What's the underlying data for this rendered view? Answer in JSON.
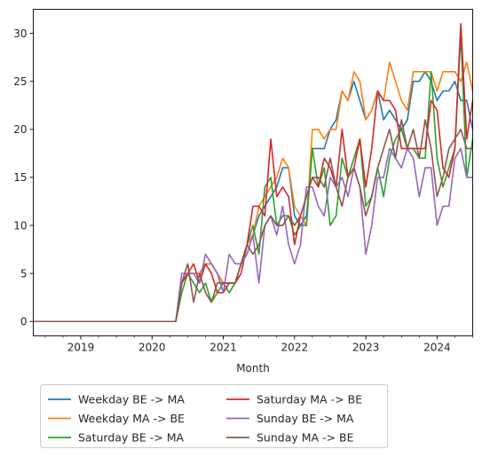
{
  "chart_data": {
    "type": "line",
    "title": "",
    "xlabel": "Month",
    "ylabel": "",
    "x_tick_labels": [
      "2019",
      "2020",
      "2021",
      "2022",
      "2023",
      "2024"
    ],
    "y_ticks": [
      0,
      5,
      10,
      15,
      20,
      25,
      30
    ],
    "xlim": [
      "2018-05",
      "2024-07"
    ],
    "ylim": [
      -1.5,
      32.5
    ],
    "grid": false,
    "legend_position": "below",
    "legend_columns": 2,
    "x": [
      "2018-05",
      "2018-06",
      "2018-07",
      "2018-08",
      "2018-09",
      "2018-10",
      "2018-11",
      "2018-12",
      "2019-01",
      "2019-02",
      "2019-03",
      "2019-04",
      "2019-05",
      "2019-06",
      "2019-07",
      "2019-08",
      "2019-09",
      "2019-10",
      "2019-11",
      "2019-12",
      "2020-01",
      "2020-02",
      "2020-03",
      "2020-04",
      "2020-05",
      "2020-06",
      "2020-07",
      "2020-08",
      "2020-09",
      "2020-10",
      "2020-11",
      "2020-12",
      "2021-01",
      "2021-02",
      "2021-03",
      "2021-04",
      "2021-05",
      "2021-06",
      "2021-07",
      "2021-08",
      "2021-09",
      "2021-10",
      "2021-11",
      "2021-12",
      "2022-01",
      "2022-02",
      "2022-03",
      "2022-04",
      "2022-05",
      "2022-06",
      "2022-07",
      "2022-08",
      "2022-09",
      "2022-10",
      "2022-11",
      "2022-12",
      "2023-01",
      "2023-02",
      "2023-03",
      "2023-04",
      "2023-05",
      "2023-06",
      "2023-07",
      "2023-08",
      "2023-09",
      "2023-10",
      "2023-11",
      "2023-12",
      "2024-01",
      "2024-02",
      "2024-03",
      "2024-04",
      "2024-05",
      "2024-06",
      "2024-07"
    ],
    "series": [
      {
        "name": "Weekday BE -> MA",
        "color": "#1f77b4",
        "values": [
          0,
          0,
          0,
          0,
          0,
          0,
          0,
          0,
          0,
          0,
          0,
          0,
          0,
          0,
          0,
          0,
          0,
          0,
          0,
          0,
          0,
          0,
          0,
          0,
          0,
          4,
          5,
          5,
          5,
          6,
          6,
          5,
          4,
          4,
          4,
          6,
          8,
          9,
          11,
          12,
          13,
          14,
          16,
          16,
          11,
          10,
          11,
          18,
          18,
          18,
          20,
          21,
          24,
          23,
          25,
          23,
          21,
          22,
          24,
          21,
          22,
          21,
          20,
          21,
          25,
          25,
          26,
          25,
          23,
          24,
          24,
          25,
          23,
          23,
          20
        ]
      },
      {
        "name": "Weekday MA -> BE",
        "color": "#ff7f0e",
        "values": [
          0,
          0,
          0,
          0,
          0,
          0,
          0,
          0,
          0,
          0,
          0,
          0,
          0,
          0,
          0,
          0,
          0,
          0,
          0,
          0,
          0,
          0,
          0,
          0,
          0,
          4,
          5,
          5,
          5,
          6,
          6,
          5,
          4,
          4,
          4,
          6,
          8,
          9,
          12,
          13,
          14,
          15,
          17,
          16,
          12,
          11,
          10,
          20,
          20,
          19,
          20,
          20,
          24,
          23,
          26,
          25,
          21,
          22,
          24,
          23,
          27,
          25,
          23,
          22,
          26,
          26,
          26,
          26,
          24,
          26,
          26,
          26,
          25,
          27,
          24
        ]
      },
      {
        "name": "Saturday BE -> MA",
        "color": "#2ca02c",
        "values": [
          0,
          0,
          0,
          0,
          0,
          0,
          0,
          0,
          0,
          0,
          0,
          0,
          0,
          0,
          0,
          0,
          0,
          0,
          0,
          0,
          0,
          0,
          0,
          0,
          0,
          3,
          5,
          4,
          3,
          4,
          2,
          3,
          4,
          3,
          4,
          6,
          8,
          10,
          7,
          14,
          15,
          10,
          11,
          11,
          9,
          10,
          10,
          18,
          14,
          16,
          10,
          11,
          17,
          15,
          17,
          19,
          12,
          13,
          16,
          13,
          17,
          19,
          20,
          18,
          18,
          17,
          17,
          26,
          17,
          14,
          16,
          18,
          30,
          15,
          19
        ]
      },
      {
        "name": "Saturday MA -> BE",
        "color": "#d62728",
        "values": [
          0,
          0,
          0,
          0,
          0,
          0,
          0,
          0,
          0,
          0,
          0,
          0,
          0,
          0,
          0,
          0,
          0,
          0,
          0,
          0,
          0,
          0,
          0,
          0,
          0,
          4,
          5,
          6,
          4,
          6,
          5,
          3,
          3,
          4,
          4,
          5,
          8,
          12,
          12,
          11,
          19,
          13,
          14,
          13,
          8,
          11,
          13,
          15,
          14,
          17,
          16,
          14,
          20,
          15,
          16,
          19,
          14,
          18,
          24,
          23,
          23,
          22,
          18,
          18,
          18,
          18,
          18,
          23,
          22,
          16,
          15,
          18,
          31,
          19,
          23
        ]
      },
      {
        "name": "Sunday BE -> MA",
        "color": "#9467bd",
        "values": [
          0,
          0,
          0,
          0,
          0,
          0,
          0,
          0,
          0,
          0,
          0,
          0,
          0,
          0,
          0,
          0,
          0,
          0,
          0,
          0,
          0,
          0,
          0,
          0,
          0,
          5,
          5,
          5,
          4,
          7,
          6,
          5,
          3,
          7,
          6,
          6,
          7,
          9,
          4,
          10,
          11,
          9,
          12,
          8,
          6,
          8,
          14,
          14,
          12,
          11,
          15,
          14,
          15,
          13,
          16,
          14,
          7,
          10,
          15,
          15,
          18,
          17,
          16,
          18,
          17,
          13,
          16,
          16,
          10,
          12,
          12,
          17,
          18,
          15,
          15
        ]
      },
      {
        "name": "Sunday MA -> BE",
        "color": "#8c564b",
        "values": [
          0,
          0,
          0,
          0,
          0,
          0,
          0,
          0,
          0,
          0,
          0,
          0,
          0,
          0,
          0,
          0,
          0,
          0,
          0,
          0,
          0,
          0,
          0,
          0,
          0,
          4,
          6,
          2,
          5,
          3,
          2,
          4,
          4,
          4,
          4,
          6,
          8,
          7,
          8,
          10,
          11,
          10,
          10,
          11,
          10,
          11,
          13,
          15,
          15,
          14,
          17,
          14,
          12,
          15,
          16,
          14,
          11,
          13,
          16,
          18,
          20,
          17,
          21,
          18,
          20,
          17,
          21,
          18,
          13,
          15,
          18,
          19,
          20,
          18,
          18
        ]
      }
    ]
  }
}
